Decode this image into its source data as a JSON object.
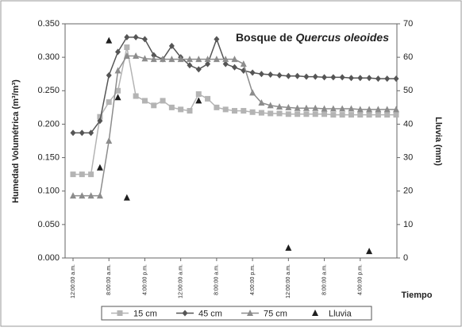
{
  "chart_data": {
    "type": "line",
    "title": "Bosque de",
    "title_species": "Quercus oleoides",
    "x_label": "Tiempo",
    "y_label": "Humedad Volumétrica (m³/m³)",
    "y2_label": "Lluvia (mm)",
    "categories": [
      "12:00:00 a.m.",
      null,
      null,
      null,
      "8:00:00 a.m.",
      null,
      null,
      null,
      "4:00:00 p.m.",
      null,
      null,
      null,
      "12:00:00 a.m.",
      null,
      null,
      null,
      "8:00:00 a.m.",
      null,
      null,
      null,
      "4:00:00 p.m.",
      null,
      null,
      null,
      "12:00:00 a.m.",
      null,
      null,
      null,
      "8:00:00 a.m.",
      null,
      null,
      null,
      "4:00:00 p.m.",
      null,
      null,
      null,
      null
    ],
    "ylim": [
      0,
      0.35
    ],
    "yticks": [
      {
        "value": 0,
        "label": "0.000"
      },
      {
        "value": 0.05,
        "label": "0.050"
      },
      {
        "value": 0.1,
        "label": "0.100"
      },
      {
        "value": 0.15,
        "label": "0.150"
      },
      {
        "value": 0.2,
        "label": "0.200"
      },
      {
        "value": 0.25,
        "label": "0.250"
      },
      {
        "value": 0.3,
        "label": "0.300"
      },
      {
        "value": 0.35,
        "label": "0.350"
      }
    ],
    "y2lim": [
      0,
      70
    ],
    "y2ticks": [
      0,
      10,
      20,
      30,
      40,
      50,
      60,
      70
    ],
    "series": [
      {
        "name": "15 cm",
        "color": "#b4b4b4",
        "marker": "square",
        "line": true,
        "values": [
          0.125,
          0.125,
          0.125,
          0.211,
          0.233,
          0.25,
          0.315,
          0.242,
          0.235,
          0.228,
          0.235,
          0.225,
          0.222,
          0.22,
          0.245,
          0.238,
          0.225,
          0.222,
          0.22,
          0.22,
          0.218,
          0.217,
          0.216,
          0.216,
          0.215,
          0.215,
          0.215,
          0.215,
          0.215,
          0.214,
          0.214,
          0.214,
          0.214,
          0.214,
          0.214,
          0.214,
          0.214
        ]
      },
      {
        "name": "45 cm",
        "color": "#555555",
        "marker": "diamond",
        "line": true,
        "values": [
          0.187,
          0.187,
          0.187,
          0.205,
          0.273,
          0.308,
          0.33,
          0.33,
          0.327,
          0.303,
          0.297,
          0.317,
          0.3,
          0.288,
          0.282,
          0.29,
          0.327,
          0.29,
          0.285,
          0.28,
          0.277,
          0.275,
          0.274,
          0.273,
          0.272,
          0.272,
          0.271,
          0.271,
          0.27,
          0.27,
          0.27,
          0.269,
          0.269,
          0.269,
          0.268,
          0.268,
          0.268
        ]
      },
      {
        "name": "75 cm",
        "color": "#8c8c8c",
        "marker": "triangle",
        "line": true,
        "values": [
          0.093,
          0.093,
          0.093,
          0.093,
          0.175,
          0.28,
          0.302,
          0.302,
          0.298,
          0.297,
          0.297,
          0.297,
          0.297,
          0.297,
          0.297,
          0.297,
          0.297,
          0.297,
          0.297,
          0.29,
          0.247,
          0.232,
          0.228,
          0.226,
          0.225,
          0.224,
          0.224,
          0.224,
          0.223,
          0.223,
          0.223,
          0.223,
          0.222,
          0.222,
          0.222,
          0.222,
          0.222
        ]
      },
      {
        "name": "Lluvia",
        "color": "#1e1e1e",
        "marker": "triangle",
        "line": false,
        "axis": "y2",
        "values": [
          null,
          null,
          null,
          27,
          65,
          48,
          18,
          null,
          null,
          null,
          null,
          null,
          null,
          null,
          47,
          null,
          null,
          null,
          null,
          null,
          null,
          null,
          null,
          null,
          3,
          null,
          null,
          null,
          null,
          null,
          null,
          null,
          null,
          2,
          null,
          null,
          null
        ]
      }
    ]
  }
}
